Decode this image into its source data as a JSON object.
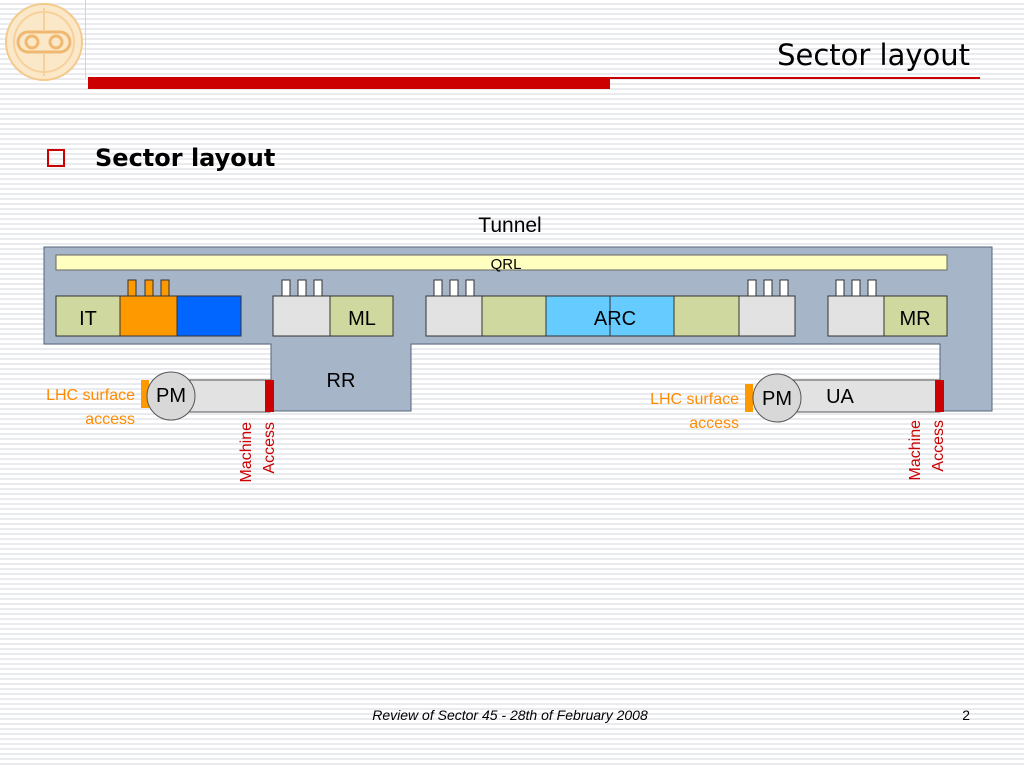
{
  "header": {
    "title": "Sector layout"
  },
  "bullet": {
    "text": "Sector layout"
  },
  "diagram": {
    "tunnel_label": "Tunnel",
    "qrl_label": "QRL",
    "segments": {
      "it": "IT",
      "ml": "ML",
      "arc": "ARC",
      "mr": "MR",
      "rr": "RR",
      "ua": "UA"
    },
    "left_access": {
      "pm": "PM",
      "surface_line1": "LHC surface",
      "surface_line2": "access",
      "machine_line1": "Machine",
      "machine_line2": "Access"
    },
    "right_access": {
      "pm": "PM",
      "surface_line1": "LHC surface",
      "surface_line2": "access",
      "machine_line1": "Machine",
      "machine_line2": "Access"
    },
    "colors": {
      "tunnel_fill": "#a7b5c9",
      "qrl_fill": "#ffffc0",
      "magnet_green": "#cfd89e",
      "gray_box": "#e2e2e2",
      "orange": "#ff9900",
      "blue": "#0066ff",
      "light_blue": "#66ccff",
      "surface_text": "#ff8c00",
      "machine_red": "#cc0000"
    }
  },
  "footer": {
    "text": "Review of Sector 45 - 28th of February 2008",
    "page": "2"
  }
}
